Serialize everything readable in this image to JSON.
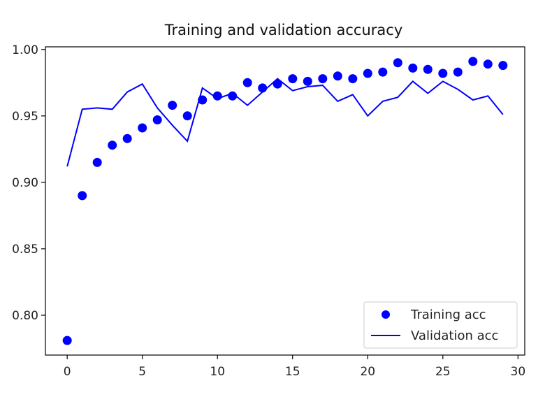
{
  "chart_data": {
    "type": "line",
    "title": "Training and validation accuracy",
    "xlabel": "",
    "ylabel": "",
    "xlim": [
      -1.45,
      30.45
    ],
    "ylim": [
      0.77,
      1.002
    ],
    "xticks": [
      0,
      5,
      10,
      15,
      20,
      25,
      30
    ],
    "yticks": [
      0.8,
      0.85,
      0.9,
      0.95,
      1.0
    ],
    "xtick_labels": [
      "0",
      "5",
      "10",
      "15",
      "20",
      "25",
      "30"
    ],
    "ytick_labels": [
      "0.80",
      "0.85",
      "0.90",
      "0.95",
      "1.00"
    ],
    "grid": false,
    "legend_position": "bottom-right",
    "series": [
      {
        "name": "Training acc",
        "style": "scatter",
        "color": "#0000ff",
        "x": [
          0,
          1,
          2,
          3,
          4,
          5,
          6,
          7,
          8,
          9,
          10,
          11,
          12,
          13,
          14,
          15,
          16,
          17,
          18,
          19,
          20,
          21,
          22,
          23,
          24,
          25,
          26,
          27,
          28,
          29
        ],
        "y": [
          0.781,
          0.89,
          0.915,
          0.928,
          0.933,
          0.941,
          0.947,
          0.958,
          0.95,
          0.962,
          0.965,
          0.965,
          0.975,
          0.971,
          0.974,
          0.978,
          0.976,
          0.978,
          0.98,
          0.978,
          0.982,
          0.983,
          0.99,
          0.986,
          0.985,
          0.982,
          0.983,
          0.991,
          0.989,
          0.988
        ]
      },
      {
        "name": "Validation acc",
        "style": "line",
        "color": "#0000ff",
        "x": [
          0,
          1,
          2,
          3,
          4,
          5,
          6,
          7,
          8,
          9,
          10,
          11,
          12,
          13,
          14,
          15,
          16,
          17,
          18,
          19,
          20,
          21,
          22,
          23,
          24,
          25,
          26,
          27,
          28,
          29
        ],
        "y": [
          0.912,
          0.955,
          0.956,
          0.955,
          0.968,
          0.974,
          0.956,
          0.943,
          0.931,
          0.971,
          0.963,
          0.967,
          0.958,
          0.968,
          0.978,
          0.969,
          0.972,
          0.973,
          0.961,
          0.966,
          0.95,
          0.961,
          0.964,
          0.976,
          0.967,
          0.976,
          0.97,
          0.962,
          0.965,
          0.951
        ]
      }
    ]
  }
}
